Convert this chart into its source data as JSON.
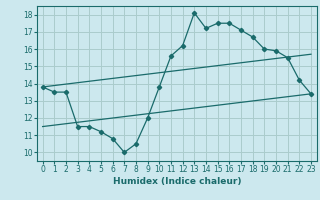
{
  "xlabel": "Humidex (Indice chaleur)",
  "background_color": "#cce8ee",
  "grid_color": "#aacccc",
  "line_color": "#1a6b6b",
  "xlim": [
    -0.5,
    23.5
  ],
  "ylim": [
    9.5,
    18.5
  ],
  "xticks": [
    0,
    1,
    2,
    3,
    4,
    5,
    6,
    7,
    8,
    9,
    10,
    11,
    12,
    13,
    14,
    15,
    16,
    17,
    18,
    19,
    20,
    21,
    22,
    23
  ],
  "yticks": [
    10,
    11,
    12,
    13,
    14,
    15,
    16,
    17,
    18
  ],
  "curve_x": [
    0,
    1,
    2,
    3,
    4,
    5,
    6,
    7,
    8,
    9,
    10,
    11,
    12,
    13,
    14,
    15,
    16,
    17,
    18,
    19,
    20,
    21,
    22,
    23
  ],
  "curve_y": [
    13.8,
    13.5,
    13.5,
    11.5,
    11.5,
    11.2,
    10.8,
    10.0,
    10.5,
    12.0,
    13.8,
    15.6,
    16.2,
    18.1,
    17.2,
    17.5,
    17.5,
    17.1,
    16.7,
    16.0,
    15.9,
    15.5,
    14.2,
    13.4
  ],
  "line1_x": [
    0,
    23
  ],
  "line1_y": [
    11.5,
    13.4
  ],
  "line2_x": [
    0,
    23
  ],
  "line2_y": [
    13.8,
    15.7
  ]
}
